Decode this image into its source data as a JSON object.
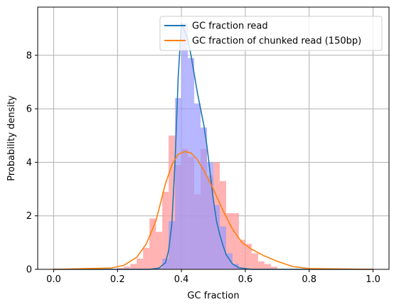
{
  "chart_data": {
    "type": "histogram_with_lines",
    "xlabel": "GC fraction",
    "ylabel": "Probability density",
    "xlim": [
      -0.05,
      1.05
    ],
    "ylim": [
      0,
      9.8
    ],
    "xticks": [
      0.0,
      0.2,
      0.4,
      0.6,
      0.8,
      1.0
    ],
    "xtick_labels": [
      "0.0",
      "0.2",
      "0.4",
      "0.6",
      "0.8",
      "1.0"
    ],
    "yticks": [
      0,
      2,
      4,
      6,
      8
    ],
    "ytick_labels": [
      "0",
      "2",
      "4",
      "6",
      "8"
    ],
    "grid": true,
    "legend_position": "top-right",
    "histograms": [
      {
        "color": "#ff9999",
        "opacity": 0.75,
        "bin_width": 0.02,
        "bins": [
          [
            0.2,
            0.05
          ],
          [
            0.22,
            0.1
          ],
          [
            0.24,
            0.2
          ],
          [
            0.26,
            0.4
          ],
          [
            0.28,
            0.8
          ],
          [
            0.3,
            1.9
          ],
          [
            0.32,
            1.4
          ],
          [
            0.34,
            2.9
          ],
          [
            0.36,
            5.0
          ],
          [
            0.38,
            3.9
          ],
          [
            0.4,
            4.5
          ],
          [
            0.42,
            4.2
          ],
          [
            0.44,
            2.8
          ],
          [
            0.46,
            4.5
          ],
          [
            0.48,
            3.5
          ],
          [
            0.5,
            4.0
          ],
          [
            0.52,
            3.3
          ],
          [
            0.54,
            2.1
          ],
          [
            0.56,
            2.1
          ],
          [
            0.58,
            1.1
          ],
          [
            0.6,
            0.95
          ],
          [
            0.62,
            0.6
          ],
          [
            0.64,
            0.3
          ],
          [
            0.66,
            0.2
          ],
          [
            0.68,
            0.1
          ]
        ]
      },
      {
        "color": "#9999ff",
        "opacity": 0.7,
        "bin_width": 0.02,
        "bins": [
          [
            0.32,
            0.05
          ],
          [
            0.34,
            0.4
          ],
          [
            0.36,
            1.8
          ],
          [
            0.38,
            6.4
          ],
          [
            0.4,
            9.2
          ],
          [
            0.42,
            7.9
          ],
          [
            0.44,
            6.2
          ],
          [
            0.46,
            5.3
          ],
          [
            0.48,
            4.0
          ],
          [
            0.5,
            2.4
          ],
          [
            0.52,
            1.6
          ],
          [
            0.54,
            0.6
          ],
          [
            0.56,
            0.2
          ],
          [
            0.58,
            0.05
          ]
        ]
      }
    ],
    "series": [
      {
        "name": "GC fraction read",
        "color": "#1f77b4",
        "x": [
          0.0,
          0.2,
          0.3,
          0.33,
          0.35,
          0.36,
          0.37,
          0.38,
          0.39,
          0.4,
          0.41,
          0.42,
          0.43,
          0.44,
          0.45,
          0.46,
          0.47,
          0.48,
          0.49,
          0.5,
          0.51,
          0.52,
          0.53,
          0.54,
          0.56,
          0.58,
          0.62,
          1.0
        ],
        "y": [
          0.0,
          0.0,
          0.0,
          0.05,
          0.25,
          0.7,
          1.7,
          4.0,
          7.2,
          9.2,
          8.9,
          8.6,
          8.0,
          7.3,
          6.6,
          6.0,
          5.4,
          4.6,
          3.6,
          2.6,
          1.8,
          1.3,
          0.9,
          0.55,
          0.2,
          0.06,
          0.0,
          0.0
        ]
      },
      {
        "name": "GC fraction of chunked read (150bp)",
        "color": "#ff7f0e",
        "x": [
          0.0,
          0.18,
          0.22,
          0.26,
          0.29,
          0.32,
          0.35,
          0.37,
          0.39,
          0.41,
          0.42,
          0.43,
          0.45,
          0.47,
          0.5,
          0.53,
          0.56,
          0.59,
          0.62,
          0.66,
          0.7,
          0.75,
          0.8,
          1.0
        ],
        "y": [
          0.0,
          0.05,
          0.15,
          0.45,
          0.95,
          1.8,
          3.2,
          3.9,
          4.3,
          4.4,
          4.38,
          4.35,
          4.1,
          3.7,
          3.0,
          2.2,
          1.5,
          1.0,
          0.75,
          0.5,
          0.3,
          0.1,
          0.03,
          0.0
        ]
      }
    ]
  }
}
